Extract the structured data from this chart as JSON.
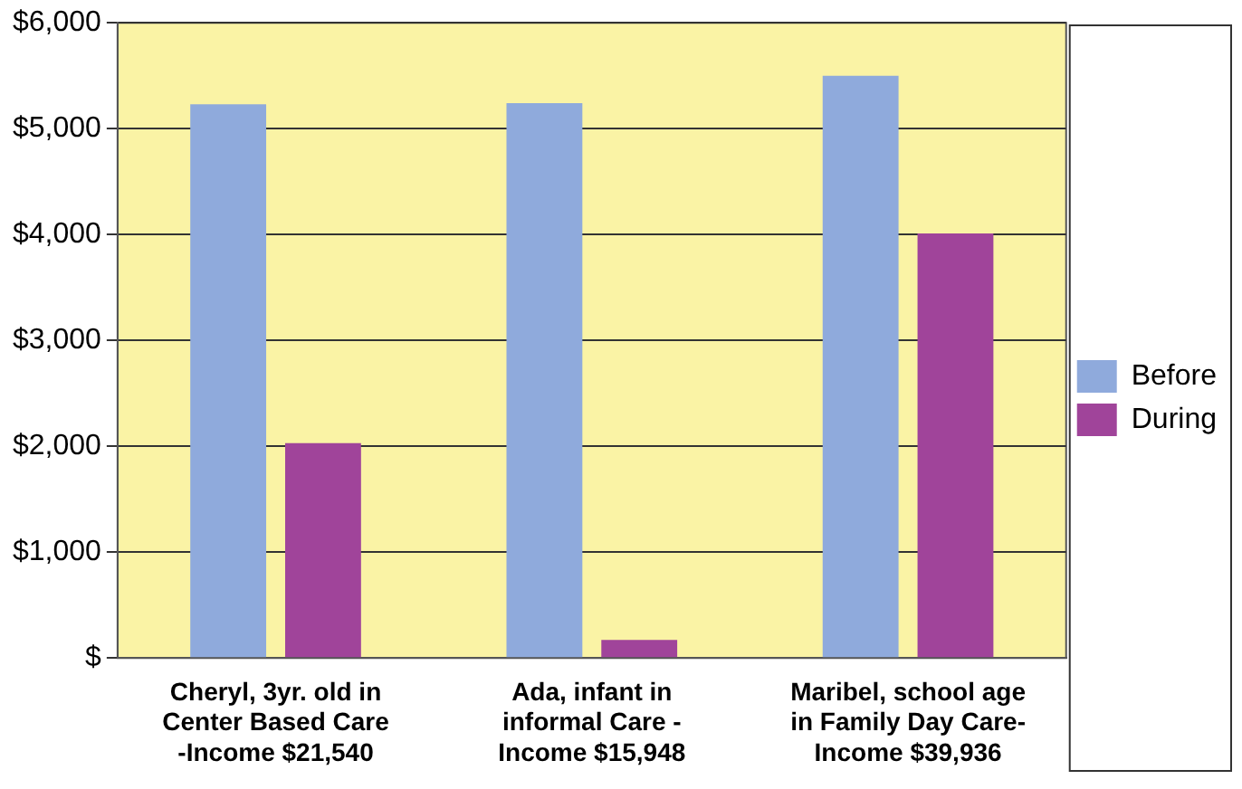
{
  "chart_data": {
    "type": "bar",
    "categories": [
      "Cheryl, 3yr. old in Center Based Care -Income $21,540",
      "Ada, infant in informal Care - Income $15,948",
      "Maribel, school age in Family Day Care- Income $39,936"
    ],
    "series": [
      {
        "name": "Before",
        "color": "#8faadc",
        "values": [
          5230,
          5240,
          5500
        ]
      },
      {
        "name": "During",
        "color": "#a0449a",
        "values": [
          2030,
          170,
          4010
        ]
      }
    ],
    "ylim": [
      0,
      6000
    ],
    "yticks": [
      {
        "value": 0,
        "label": "$"
      },
      {
        "value": 1000,
        "label": "$1,000"
      },
      {
        "value": 2000,
        "label": "$2,000"
      },
      {
        "value": 3000,
        "label": "$3,000"
      },
      {
        "value": 4000,
        "label": "$4,000"
      },
      {
        "value": 5000,
        "label": "$5,000"
      },
      {
        "value": 6000,
        "label": "$6,000"
      }
    ],
    "grid": "y",
    "legend": "right"
  }
}
